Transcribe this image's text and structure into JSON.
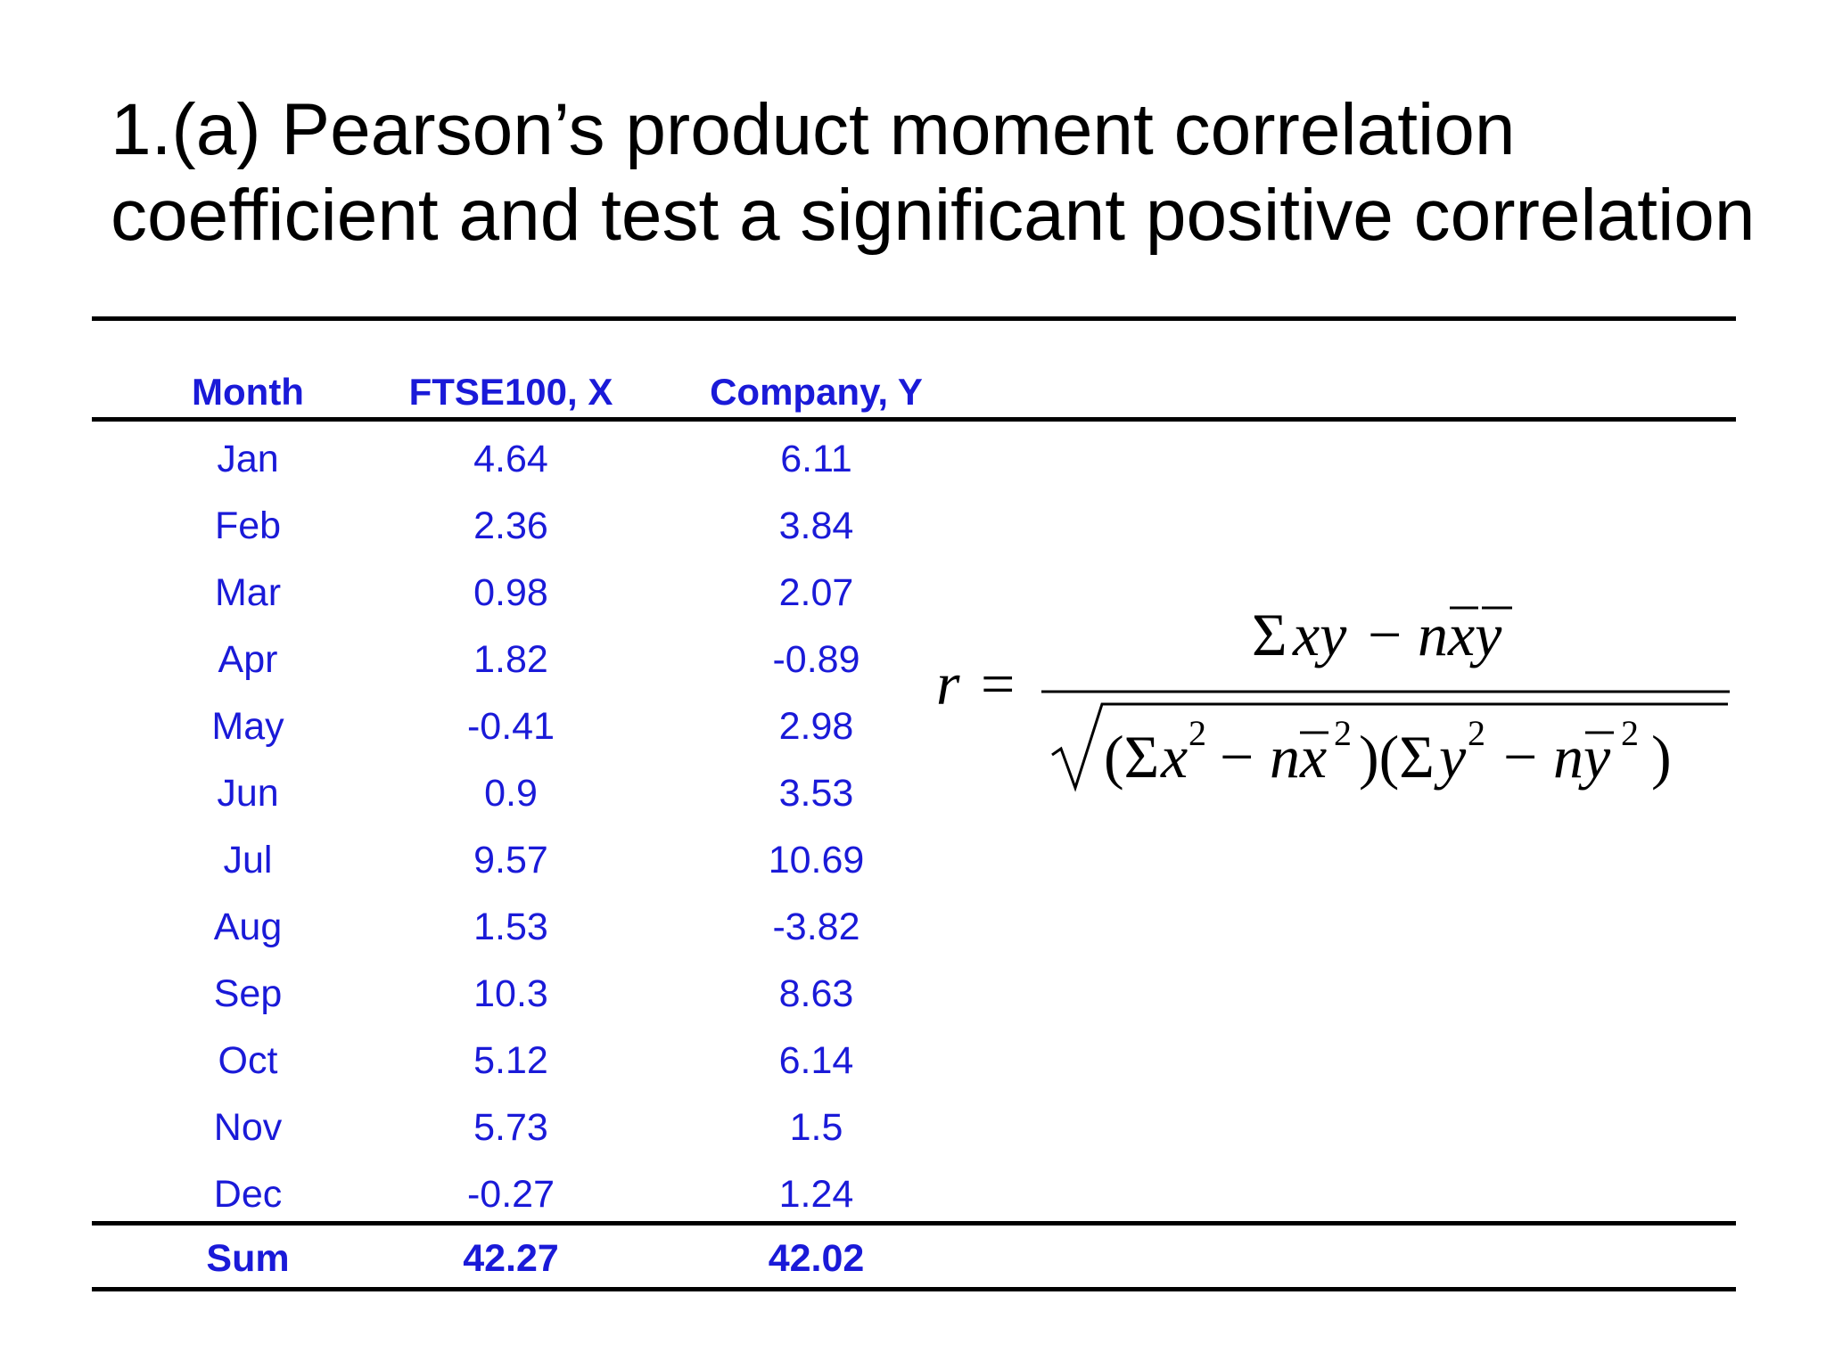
{
  "title": {
    "line1": "1.(a) Pearson’s product moment correlation",
    "line2": "coefficient and test a significant positive correlation"
  },
  "table": {
    "headers": [
      "Month",
      "FTSE100, X",
      "Company, Y"
    ],
    "rows": [
      [
        "Jan",
        "4.64",
        "6.11"
      ],
      [
        "Feb",
        "2.36",
        "3.84"
      ],
      [
        "Mar",
        "0.98",
        "2.07"
      ],
      [
        "Apr",
        "1.82",
        "-0.89"
      ],
      [
        "May",
        "-0.41",
        "2.98"
      ],
      [
        "Jun",
        "0.9",
        "3.53"
      ],
      [
        "Jul",
        "9.57",
        "10.69"
      ],
      [
        "Aug",
        "1.53",
        "-3.82"
      ],
      [
        "Sep",
        "10.3",
        "8.63"
      ],
      [
        "Oct",
        "5.12",
        "6.14"
      ],
      [
        "Nov",
        "5.73",
        "1.5"
      ],
      [
        "Dec",
        "-0.27",
        "1.24"
      ]
    ],
    "sum_row": [
      "Sum",
      "42.27",
      "42.02"
    ]
  },
  "formula": {
    "lhs": "r",
    "equals": "=",
    "numerator": "Σxy − nx̄ȳ",
    "denominator": "√((Σx² − nx̄²)(Σy² − nȳ²))"
  },
  "colors": {
    "table_text": "#1a1ad8",
    "title_text": "#000000",
    "rules": "#000000"
  }
}
